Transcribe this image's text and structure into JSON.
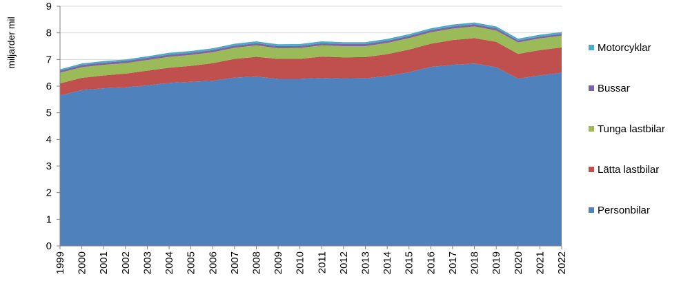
{
  "chart_data": {
    "type": "area",
    "stacked": true,
    "title": "",
    "xlabel": "",
    "ylabel": "miljarder mil",
    "ylim": [
      0,
      9
    ],
    "yticks": [
      0,
      1,
      2,
      3,
      4,
      5,
      6,
      7,
      8,
      9
    ],
    "grid": true,
    "legend_position": "right",
    "x": [
      "1999",
      "2000",
      "2001",
      "2002",
      "2003",
      "2004",
      "2005",
      "2006",
      "2007",
      "2008",
      "2009",
      "2010",
      "2011",
      "2012",
      "2013",
      "2014",
      "2015",
      "2016",
      "2017",
      "2018",
      "2019",
      "2020",
      "2021",
      "2022"
    ],
    "series": [
      {
        "name": "Personbilar",
        "color": "#4f81bd",
        "values": [
          5.65,
          5.85,
          5.92,
          5.95,
          6.03,
          6.12,
          6.16,
          6.2,
          6.32,
          6.36,
          6.27,
          6.27,
          6.31,
          6.28,
          6.29,
          6.38,
          6.52,
          6.72,
          6.8,
          6.85,
          6.71,
          6.28,
          6.4,
          6.5
        ]
      },
      {
        "name": "Lätta lastbilar",
        "color": "#c0504d",
        "values": [
          0.45,
          0.46,
          0.48,
          0.52,
          0.55,
          0.57,
          0.6,
          0.66,
          0.7,
          0.74,
          0.75,
          0.75,
          0.8,
          0.8,
          0.8,
          0.82,
          0.85,
          0.87,
          0.93,
          0.95,
          0.95,
          0.93,
          0.95,
          0.95
        ]
      },
      {
        "name": "Tunga lastbilar",
        "color": "#9bbb59",
        "values": [
          0.4,
          0.4,
          0.4,
          0.39,
          0.4,
          0.41,
          0.41,
          0.41,
          0.42,
          0.43,
          0.4,
          0.41,
          0.42,
          0.42,
          0.41,
          0.42,
          0.43,
          0.43,
          0.43,
          0.44,
          0.43,
          0.43,
          0.44,
          0.44
        ]
      },
      {
        "name": "Bussar",
        "color": "#8064a2",
        "values": [
          0.08,
          0.08,
          0.08,
          0.08,
          0.08,
          0.08,
          0.08,
          0.08,
          0.08,
          0.08,
          0.08,
          0.08,
          0.08,
          0.08,
          0.08,
          0.08,
          0.08,
          0.08,
          0.08,
          0.08,
          0.08,
          0.07,
          0.07,
          0.07
        ]
      },
      {
        "name": "Motorcyklar",
        "color": "#4bacc6",
        "values": [
          0.05,
          0.06,
          0.06,
          0.06,
          0.06,
          0.07,
          0.07,
          0.07,
          0.07,
          0.07,
          0.07,
          0.07,
          0.07,
          0.07,
          0.07,
          0.07,
          0.07,
          0.07,
          0.07,
          0.07,
          0.07,
          0.07,
          0.07,
          0.07
        ]
      }
    ]
  }
}
